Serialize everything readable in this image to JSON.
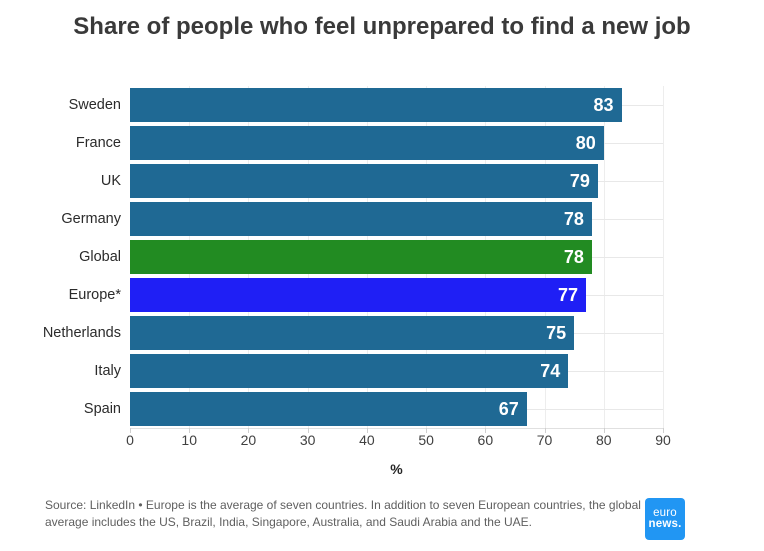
{
  "chart_data": {
    "type": "bar",
    "orientation": "horizontal",
    "title": "Share of people who feel unprepared to find a new job",
    "xlabel": "%",
    "xlim": [
      0,
      90
    ],
    "x_ticks": [
      0,
      10,
      20,
      30,
      40,
      50,
      60,
      70,
      80,
      90
    ],
    "grid": "light gray horizontal row lines and vertical tick lines",
    "legend": "none",
    "value_labels": "white bold, inside right end of each bar",
    "categories": [
      "Sweden",
      "France",
      "UK",
      "Germany",
      "Global",
      "Europe*",
      "Netherlands",
      "Italy",
      "Spain"
    ],
    "values": [
      83,
      80,
      79,
      78,
      78,
      77,
      75,
      74,
      67
    ],
    "bar_colors": [
      "#1f6994",
      "#1f6994",
      "#1f6994",
      "#1f6994",
      "#228b22",
      "#1f1ff5",
      "#1f6994",
      "#1f6994",
      "#1f6994"
    ],
    "highlights": {
      "Global": "#228b22",
      "Europe*": "#1f1ff5",
      "default": "#1f6994"
    }
  },
  "footer": {
    "source": "Source: LinkedIn • Europe is the average of seven countries. In addition to seven European countries, the global average includes the US, Brazil, India, Singapore, Australia, and Saudi Arabia and the UAE."
  },
  "branding": {
    "logo_line1": "euro",
    "logo_line2": "news.",
    "logo_color": "#2196f3"
  }
}
